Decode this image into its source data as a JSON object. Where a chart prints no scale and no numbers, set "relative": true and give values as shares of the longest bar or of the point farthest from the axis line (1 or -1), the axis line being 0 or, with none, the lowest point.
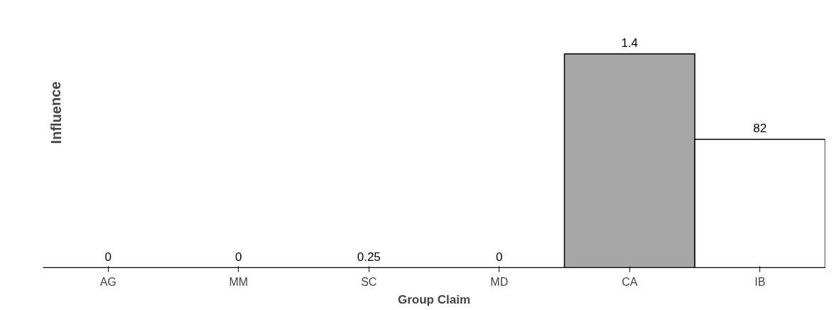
{
  "chart_data": {
    "type": "bar",
    "xlabel": "Group Claim",
    "ylabel": "Influence",
    "categories": [
      "AG",
      "MM",
      "SC",
      "MD",
      "CA",
      "IB"
    ],
    "values": [
      0,
      0,
      0,
      0,
      1,
      0.6
    ],
    "colors": [
      "#ffffff",
      "#ffffff",
      "#ffffff",
      "#ffffff",
      "#a6a6a6",
      "#ffffff"
    ],
    "annotations": [
      {
        "text": "0",
        "x": "AG",
        "y": 0
      },
      {
        "text": "0",
        "x": "MM",
        "y": 0
      },
      {
        "text": "0.25",
        "x": "SC",
        "y": 0
      },
      {
        "text": "0",
        "x": "MD",
        "y": 0
      },
      {
        "text": "1.4",
        "x": "CA",
        "y": 1
      },
      {
        "text": "82",
        "x": "IB",
        "y": 0.6
      }
    ],
    "relative": true,
    "grid": false
  }
}
